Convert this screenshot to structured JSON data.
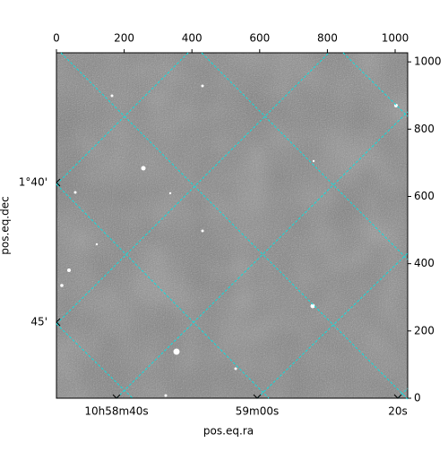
{
  "chart_data": {
    "type": "image",
    "x_label": "pos.eq.ra",
    "y_label": "pos.eq.dec",
    "xlim": [
      0,
      1037
    ],
    "xticks": [
      0,
      200,
      400,
      600,
      800,
      1000
    ],
    "ylim": [
      0,
      1027
    ],
    "yticks": [
      0,
      200,
      400,
      600,
      800,
      1000
    ],
    "ra_tick_labels": [
      "10h58m40s",
      "59m00s",
      "20s"
    ],
    "dec_tick_labels": [
      "1°40'",
      "45'"
    ],
    "grid_color": "#00e5e5"
  }
}
